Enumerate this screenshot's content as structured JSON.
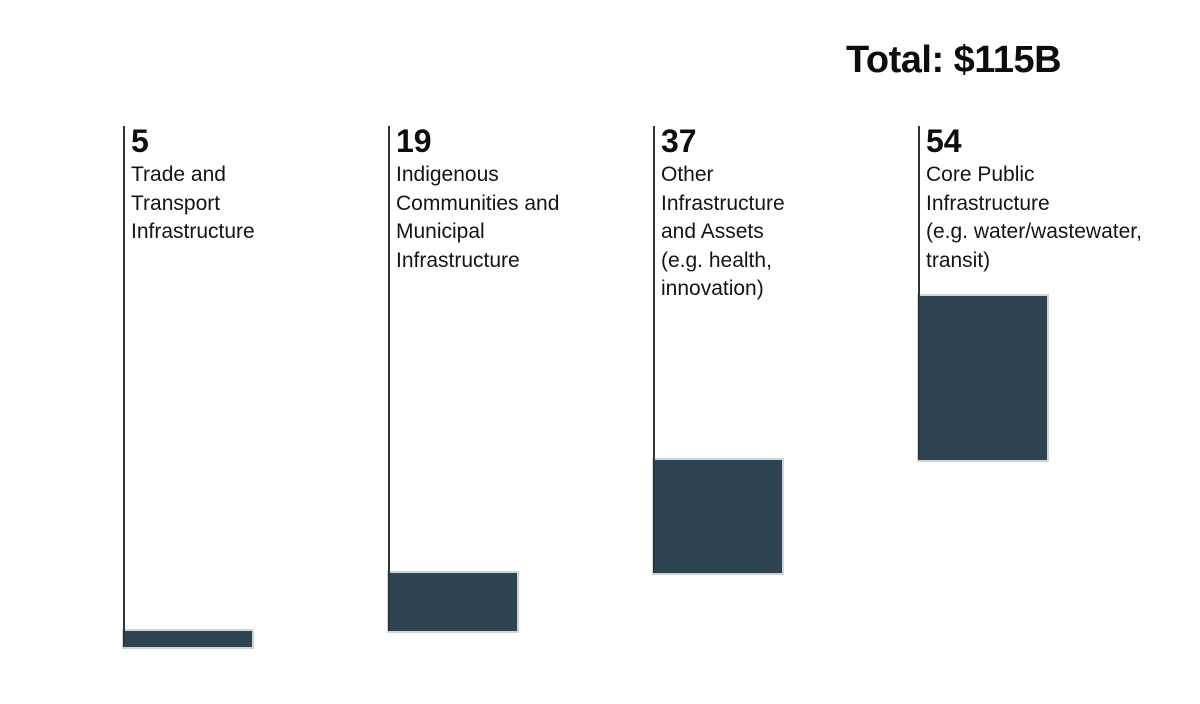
{
  "chart_data": {
    "type": "bar",
    "variant": "waterfall",
    "title": "Total: $115B",
    "total": 115,
    "categories": [
      "Trade and Transport Infrastructure",
      "Indigenous Communities and Municipal Infrastructure",
      "Other Infrastructure and Assets (e.g. health, innovation)",
      "Core Public Infrastructure (e.g. water/wastewater, transit)"
    ],
    "label_lines": [
      [
        "Trade and",
        "Transport",
        "Infrastructure"
      ],
      [
        "Indigenous",
        "Communities and",
        "Municipal",
        "Infrastructure"
      ],
      [
        "Other",
        "Infrastructure",
        "and Assets",
        "(e.g. health,",
        "innovation)"
      ],
      [
        "Core Public",
        "Infrastructure",
        "(e.g. water/wastewater,",
        "transit)"
      ]
    ],
    "values": [
      5,
      19,
      37,
      54
    ],
    "cumulative": [
      5,
      24,
      61,
      115
    ],
    "ylim": [
      0,
      115
    ],
    "grid": false,
    "legend": false,
    "value_label_position": "top-of-column",
    "bar_color": "#2e4452",
    "bar_outline_color": "#ccd5dc",
    "axis_line_color": "#333333",
    "text_color": "#111111",
    "background_color": "#ffffff"
  }
}
